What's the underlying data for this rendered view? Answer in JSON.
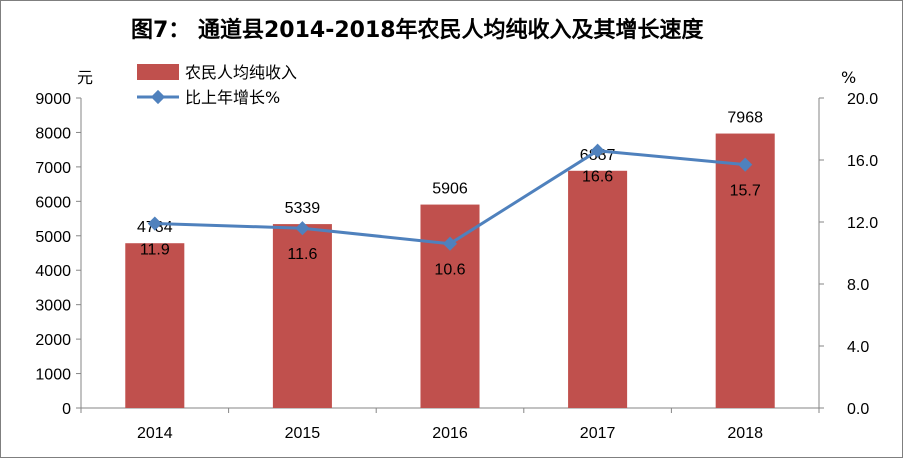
{
  "chart_data": {
    "type": "bar",
    "title": "图7：  通道县2014-2018年农民人均纯收入及其增长速度",
    "categories": [
      "2014",
      "2015",
      "2016",
      "2017",
      "2018"
    ],
    "series": [
      {
        "name": "农民人均纯收入",
        "type": "bar",
        "axis": "left",
        "color": "#c0504d",
        "values": [
          4784,
          5339,
          5906,
          6887,
          7968
        ]
      },
      {
        "name": "比上年增长%",
        "type": "line",
        "axis": "right",
        "color": "#4f81bd",
        "marker": "diamond",
        "values": [
          11.9,
          11.6,
          10.6,
          16.6,
          15.7
        ]
      }
    ],
    "y_left": {
      "unit": "元",
      "ylim": [
        0,
        9000
      ],
      "ticks": [
        "0",
        "1000",
        "2000",
        "3000",
        "4000",
        "5000",
        "6000",
        "7000",
        "8000",
        "9000"
      ]
    },
    "y_right": {
      "unit": "%",
      "ylim": [
        0,
        20
      ],
      "ticks": [
        "0.0",
        "4.0",
        "8.0",
        "12.0",
        "16.0",
        "20.0"
      ]
    },
    "bar_labels": [
      "4784",
      "5339",
      "5906",
      "6887",
      "7968"
    ],
    "line_labels": [
      "11.9",
      "11.6",
      "10.6",
      "16.6",
      "15.7"
    ],
    "grid": false,
    "legend_position": "top-left"
  }
}
